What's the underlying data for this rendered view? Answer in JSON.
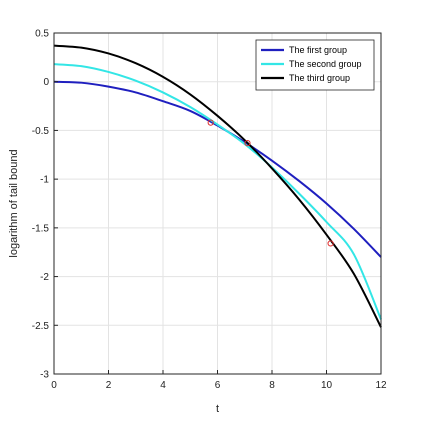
{
  "chart_data": {
    "type": "line",
    "xlabel": "t",
    "ylabel": "logarithm of tail bound",
    "xlim": [
      0,
      12
    ],
    "ylim": [
      -3,
      0.5
    ],
    "xticks": [
      0,
      2,
      4,
      6,
      8,
      10,
      12
    ],
    "yticks": [
      0.5,
      0,
      -0.5,
      -1,
      -1.5,
      -2,
      -2.5,
      -3
    ],
    "xtick_labels": [
      "0",
      "2",
      "4",
      "6",
      "8",
      "10",
      "12"
    ],
    "ytick_labels": [
      "0.5",
      "0",
      "-0.5",
      "-1",
      "-1.5",
      "-2",
      "-2.5",
      "-3"
    ],
    "grid": true,
    "legend_position": "top-right",
    "series": [
      {
        "name": "The first group",
        "color": "#1f1fbf",
        "x": [
          0,
          1,
          2,
          3,
          4,
          5,
          6,
          7,
          8,
          9,
          10,
          11,
          12
        ],
        "y": [
          0,
          -0.01,
          -0.05,
          -0.11,
          -0.2,
          -0.3,
          -0.45,
          -0.62,
          -0.81,
          -1.02,
          -1.25,
          -1.51,
          -1.8
        ]
      },
      {
        "name": "The second group",
        "color": "#33e6e6",
        "x": [
          0,
          1,
          2,
          3,
          4,
          5,
          6,
          7,
          8,
          9,
          10,
          11,
          12
        ],
        "y": [
          0.18,
          0.16,
          0.1,
          0.01,
          -0.11,
          -0.26,
          -0.44,
          -0.64,
          -0.88,
          -1.15,
          -1.44,
          -1.77,
          -2.44
        ]
      },
      {
        "name": "The third group",
        "color": "#000000",
        "x": [
          0,
          1,
          2,
          3,
          4,
          5,
          6,
          7,
          8,
          9,
          10,
          11,
          12
        ],
        "y": [
          0.37,
          0.35,
          0.29,
          0.19,
          0.05,
          -0.13,
          -0.35,
          -0.6,
          -0.89,
          -1.21,
          -1.57,
          -1.97,
          -2.52
        ]
      }
    ],
    "markers": [
      {
        "x": 5.75,
        "y": -0.42,
        "color": "#e03030"
      },
      {
        "x": 7.1,
        "y": -0.63,
        "color": "#e03030"
      },
      {
        "x": 10.15,
        "y": -1.66,
        "color": "#e03030"
      }
    ]
  }
}
